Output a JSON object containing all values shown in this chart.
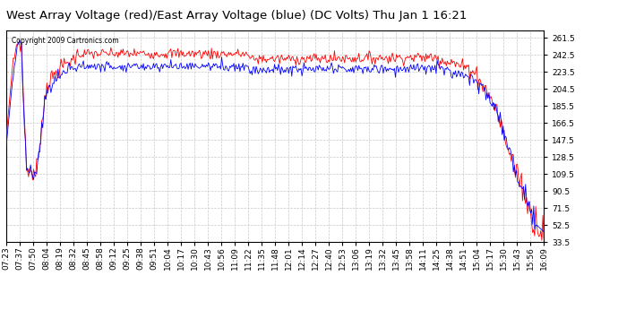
{
  "title": "West Array Voltage (red)/East Array Voltage (blue) (DC Volts) Thu Jan 1 16:21",
  "copyright_text": "Copyright 2009 Cartronics.com",
  "ylim": [
    33.5,
    270.0
  ],
  "yticks": [
    33.5,
    52.5,
    71.5,
    90.5,
    109.5,
    128.5,
    147.5,
    166.5,
    185.5,
    204.5,
    223.5,
    242.5,
    261.5
  ],
  "background_color": "#ffffff",
  "grid_color": "#c8c8c8",
  "title_fontsize": 9.5,
  "tick_fontsize": 6.5,
  "red_color": "#ff0000",
  "blue_color": "#0000ff",
  "n_points": 530,
  "time_labels": [
    "07:23",
    "07:37",
    "07:50",
    "08:04",
    "08:19",
    "08:32",
    "08:45",
    "08:58",
    "09:12",
    "09:25",
    "09:38",
    "09:51",
    "10:04",
    "10:17",
    "10:30",
    "10:43",
    "10:56",
    "11:09",
    "11:22",
    "11:35",
    "11:48",
    "12:01",
    "12:14",
    "12:27",
    "12:40",
    "12:53",
    "13:06",
    "13:19",
    "13:32",
    "13:45",
    "13:58",
    "14:11",
    "14:25",
    "14:38",
    "14:51",
    "15:04",
    "15:17",
    "15:30",
    "15:43",
    "15:56",
    "16:09"
  ]
}
